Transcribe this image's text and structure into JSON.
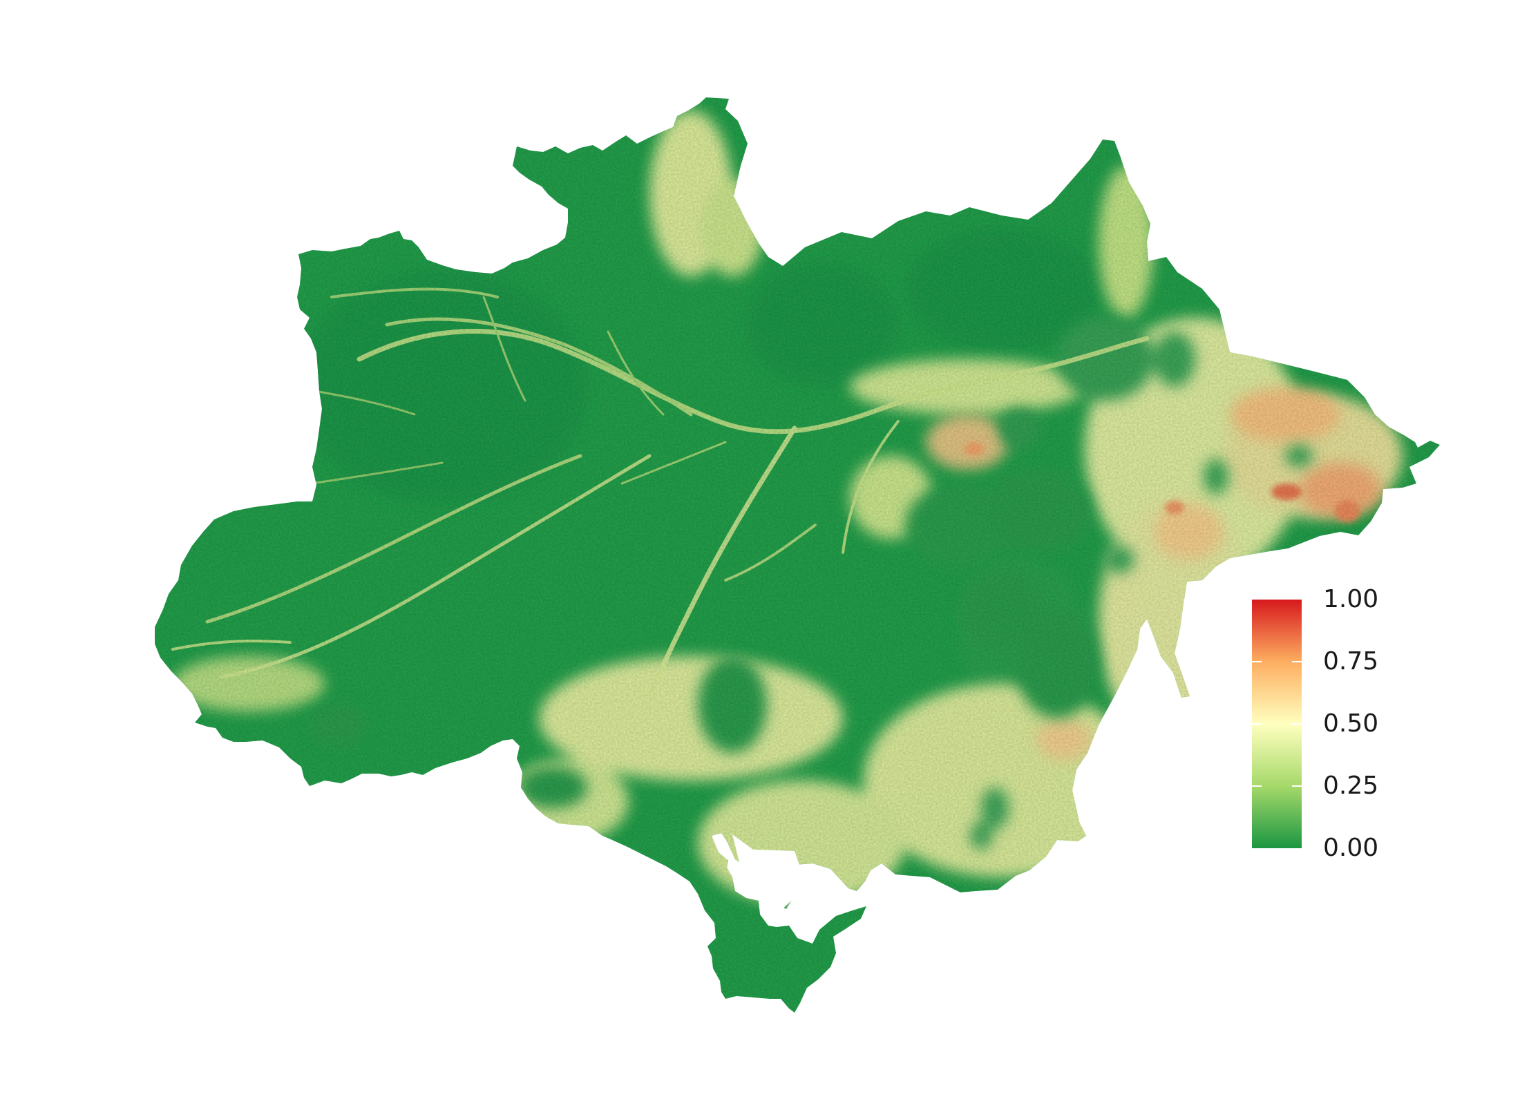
{
  "legend": {
    "ticks": [
      {
        "value": 1.0,
        "label": "1.00"
      },
      {
        "value": 0.75,
        "label": "0.75"
      },
      {
        "value": 0.5,
        "label": "0.50"
      },
      {
        "value": 0.25,
        "label": "0.25"
      },
      {
        "value": 0.0,
        "label": "0.00"
      }
    ],
    "range": [
      0,
      1
    ],
    "colors": [
      "#1a9641",
      "#a6d96a",
      "#ffffbf",
      "#fdae61",
      "#d7191c"
    ]
  },
  "map": {
    "region": "Amazon basin",
    "palette": {
      "dense_forest": "#1e9a48",
      "forest": "#34a852",
      "low_value": "#9fd56a",
      "mid_value": "#eef4a0",
      "high_value": "#fbd58a",
      "very_high_value": "#ee8a5e"
    },
    "background": "#ffffff"
  }
}
